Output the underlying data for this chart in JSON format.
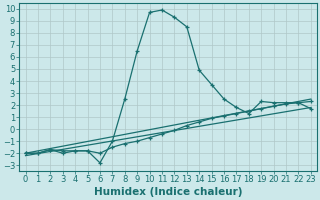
{
  "xlabel": "Humidex (Indice chaleur)",
  "xlim": [
    -0.5,
    23.5
  ],
  "ylim": [
    -3.5,
    10.5
  ],
  "xticks": [
    0,
    1,
    2,
    3,
    4,
    5,
    6,
    7,
    8,
    9,
    10,
    11,
    12,
    13,
    14,
    15,
    16,
    17,
    18,
    19,
    20,
    21,
    22,
    23
  ],
  "yticks": [
    -3,
    -2,
    -1,
    0,
    1,
    2,
    3,
    4,
    5,
    6,
    7,
    8,
    9,
    10
  ],
  "background_color": "#cce8ea",
  "grid_color": "#b0c8c8",
  "line_color": "#1a7070",
  "curve1_x": [
    0,
    1,
    2,
    3,
    4,
    5,
    6,
    7,
    8,
    9,
    10,
    11,
    12,
    13,
    14,
    15,
    16,
    17,
    18,
    19,
    20,
    21,
    22,
    23
  ],
  "curve1_y": [
    -2,
    -2,
    -1.7,
    -2,
    -1.8,
    -1.8,
    -2.8,
    -1.0,
    2.5,
    6.5,
    9.7,
    9.9,
    9.3,
    8.5,
    4.9,
    3.7,
    2.5,
    1.8,
    1.3,
    2.3,
    2.2,
    2.2,
    2.2,
    1.7
  ],
  "curve2_x": [
    0,
    1,
    2,
    3,
    4,
    5,
    6,
    7,
    8,
    9,
    10,
    11,
    12,
    13,
    14,
    15,
    16,
    17,
    18,
    19,
    20,
    21,
    22,
    23
  ],
  "curve2_y": [
    -2,
    -2,
    -1.7,
    -1.8,
    -1.8,
    -1.8,
    -2,
    -1.5,
    -1.2,
    -1.0,
    -0.7,
    -0.4,
    -0.1,
    0.3,
    0.6,
    0.9,
    1.1,
    1.3,
    1.5,
    1.7,
    1.9,
    2.1,
    2.2,
    2.3
  ],
  "line3_x": [
    0,
    23
  ],
  "line3_y": [
    -2.0,
    2.5
  ],
  "line4_x": [
    0,
    23
  ],
  "line4_y": [
    -2.2,
    1.8
  ],
  "fontsize_tick": 6,
  "fontsize_label": 7.5
}
